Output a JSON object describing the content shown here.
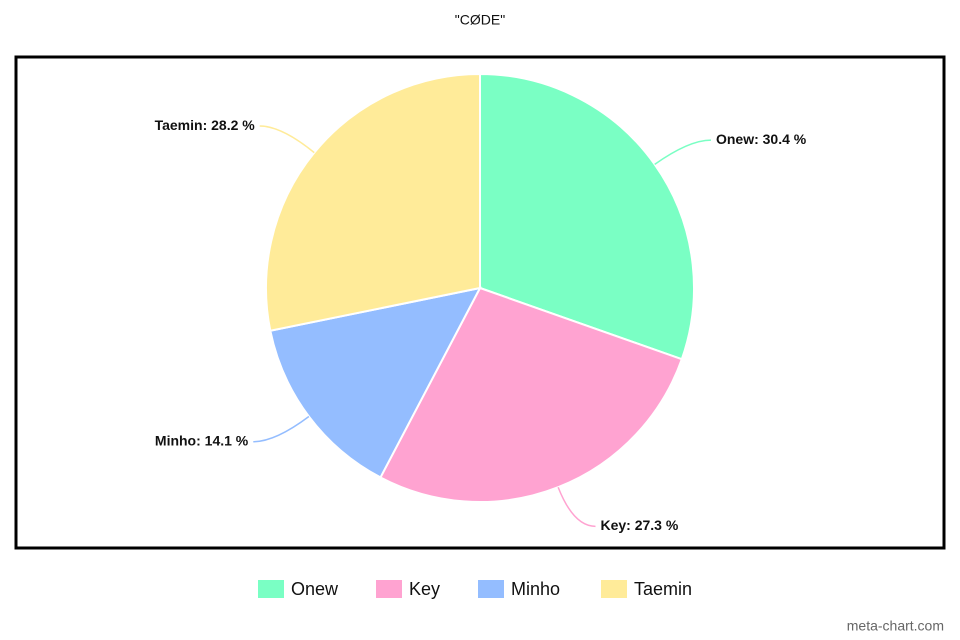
{
  "chart_data": {
    "type": "pie",
    "title": "\"CØDE\"",
    "categories": [
      "Onew",
      "Key",
      "Minho",
      "Taemin"
    ],
    "values": [
      30.4,
      27.3,
      14.1,
      28.2
    ],
    "value_labels": [
      "Onew: 30.4 %",
      "Key: 27.3 %",
      "Minho: 14.1 %",
      "Taemin: 28.2 %"
    ],
    "colors": [
      "#7affc4",
      "#ffa3d1",
      "#94bdff",
      "#ffeb99"
    ],
    "watermark": "meta-chart.com"
  }
}
